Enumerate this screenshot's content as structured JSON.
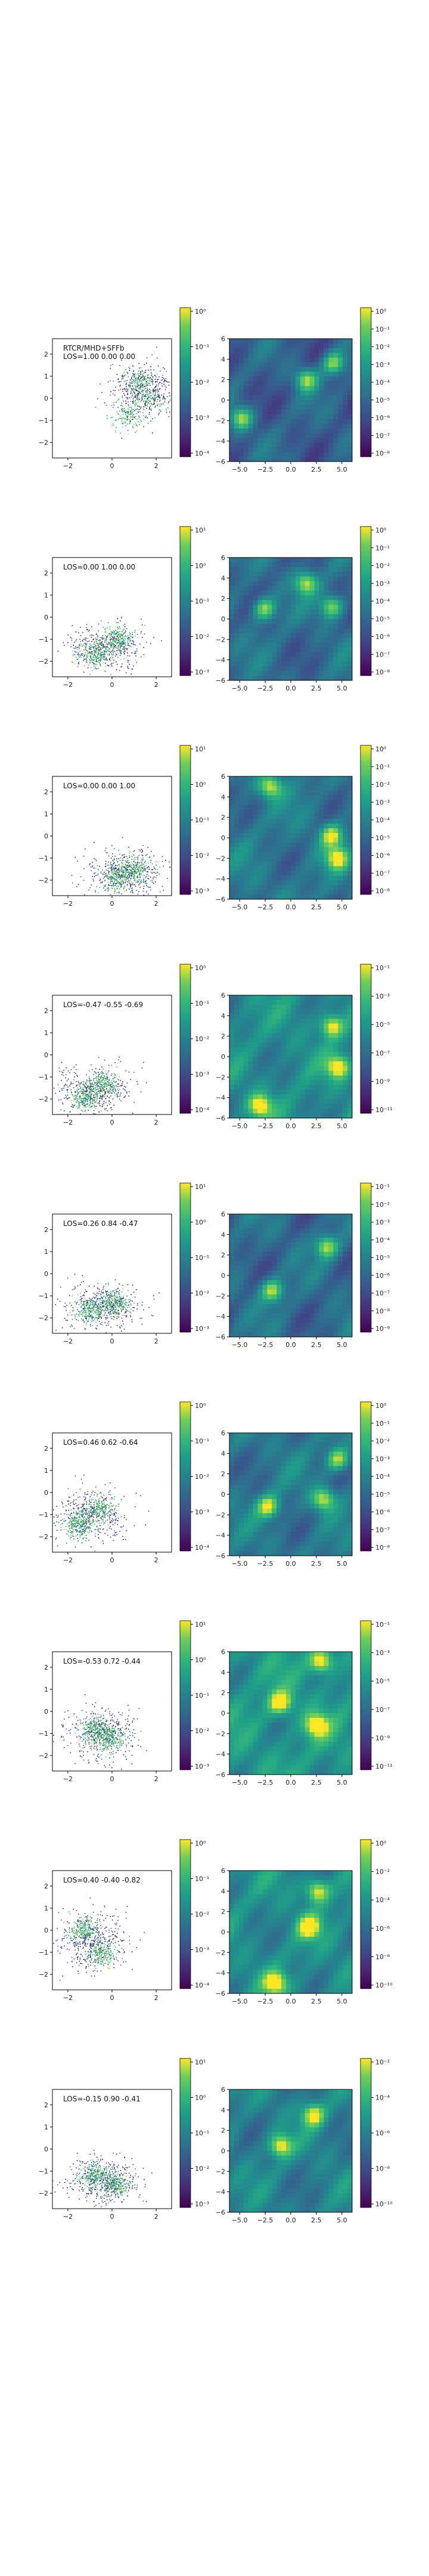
{
  "chart_data": {
    "type": "figure-grid",
    "rows": [
      {
        "left": {
          "type": "scatter",
          "annotation_lines": [
            "RTCR/MHD+SFFb",
            "LOS=1.00 0.00 0.00"
          ],
          "xticks": [
            "−2",
            "0",
            "2"
          ],
          "yticks": [
            "−2",
            "−1",
            "0",
            "1",
            "2"
          ],
          "xlim": [
            -2.7,
            2.7
          ],
          "ylim": [
            -2.7,
            2.7
          ],
          "density_centers": [
            [
              1.6,
              0.0
            ],
            [
              0.7,
              -0.8
            ],
            [
              1.2,
              0.8
            ]
          ],
          "spread": [
            1.3,
            1.1
          ]
        },
        "left_colorbar": {
          "ticks": [
            "10⁰",
            "10⁻¹",
            "10⁻²",
            "10⁻³",
            "10⁻⁴"
          ]
        },
        "right": {
          "type": "heatmap",
          "xticks": [
            "−5.0",
            "−2.5",
            "0.0",
            "2.5",
            "5.0"
          ],
          "yticks": [
            "−6",
            "−4",
            "−2",
            "0",
            "2",
            "4",
            "6"
          ],
          "xlim": [
            -6,
            6
          ],
          "ylim": [
            -6,
            6
          ],
          "bright_spots": [
            [
              4.2,
              3.6
            ],
            [
              -4.8,
              -1.8
            ],
            [
              1.5,
              2.0
            ]
          ],
          "base": 0.35
        },
        "right_colorbar": {
          "ticks": [
            "10⁰",
            "10⁻¹",
            "10⁻²",
            "10⁻³",
            "10⁻⁴",
            "10⁻⁵",
            "10⁻⁶",
            "10⁻⁷",
            "10⁻⁸"
          ]
        }
      },
      {
        "left": {
          "type": "scatter",
          "annotation_lines": [
            "LOS=0.00 1.00 0.00"
          ],
          "xticks": [
            "−2",
            "0",
            "2"
          ],
          "yticks": [
            "−2",
            "−1",
            "0",
            "1",
            "2"
          ],
          "xlim": [
            -2.7,
            2.7
          ],
          "ylim": [
            -2.7,
            2.7
          ],
          "density_centers": [
            [
              -0.8,
              -1.7
            ],
            [
              0.2,
              -1.0
            ]
          ],
          "spread": [
            1.6,
            0.9
          ]
        },
        "left_colorbar": {
          "ticks": [
            "10¹",
            "10⁰",
            "10⁻¹",
            "10⁻²",
            "10⁻³"
          ]
        },
        "right": {
          "type": "heatmap",
          "xticks": [
            "−5.0",
            "−2.5",
            "0.0",
            "2.5",
            "5.0"
          ],
          "yticks": [
            "−6",
            "−4",
            "−2",
            "0",
            "2",
            "4",
            "6"
          ],
          "xlim": [
            -6,
            6
          ],
          "ylim": [
            -6,
            6
          ],
          "bright_spots": [
            [
              -2.6,
              1.0
            ],
            [
              4.0,
              1.2
            ],
            [
              1.5,
              3.5
            ]
          ],
          "base": 0.4
        },
        "right_colorbar": {
          "ticks": [
            "10⁰",
            "10⁻¹",
            "10⁻²",
            "10⁻³",
            "10⁻⁴",
            "10⁻⁵",
            "10⁻⁶",
            "10⁻⁷",
            "10⁻⁸"
          ]
        }
      },
      {
        "left": {
          "type": "scatter",
          "annotation_lines": [
            "LOS=0.00 0.00 1.00"
          ],
          "xticks": [
            "−2",
            "0",
            "2"
          ],
          "yticks": [
            "−2",
            "−1",
            "0",
            "1",
            "2"
          ],
          "xlim": [
            -2.7,
            2.7
          ],
          "ylim": [
            -2.7,
            2.7
          ],
          "density_centers": [
            [
              0.2,
              -1.8
            ],
            [
              1.0,
              -1.5
            ]
          ],
          "spread": [
            1.5,
            1.0
          ]
        },
        "left_colorbar": {
          "ticks": [
            "10¹",
            "10⁰",
            "10⁻¹",
            "10⁻²",
            "10⁻³"
          ]
        },
        "right": {
          "type": "heatmap",
          "xticks": [
            "−5.0",
            "−2.5",
            "0.0",
            "2.5",
            "5.0"
          ],
          "yticks": [
            "−6",
            "−4",
            "−2",
            "0",
            "2",
            "4",
            "6"
          ],
          "xlim": [
            -6,
            6
          ],
          "ylim": [
            -6,
            6
          ],
          "bright_spots": [
            [
              -2.0,
              5.0
            ],
            [
              4.5,
              -2.0
            ],
            [
              4.0,
              0.2
            ]
          ],
          "base": 0.45
        },
        "right_colorbar": {
          "ticks": [
            "10⁰",
            "10⁻¹",
            "10⁻²",
            "10⁻³",
            "10⁻⁴",
            "10⁻⁵",
            "10⁻⁶",
            "10⁻⁷",
            "10⁻⁸"
          ]
        }
      },
      {
        "left": {
          "type": "scatter",
          "annotation_lines": [
            "LOS=-0.47 -0.55 -0.69"
          ],
          "xticks": [
            "−2",
            "0",
            "2"
          ],
          "yticks": [
            "−2",
            "−1",
            "0",
            "1",
            "2"
          ],
          "xlim": [
            -2.7,
            2.7
          ],
          "ylim": [
            -2.7,
            2.7
          ],
          "density_centers": [
            [
              -1.2,
              -1.9
            ],
            [
              -0.4,
              -1.3
            ]
          ],
          "spread": [
            1.5,
            1.0
          ]
        },
        "left_colorbar": {
          "ticks": [
            "10⁰",
            "10⁻¹",
            "10⁻²",
            "10⁻³",
            "10⁻⁴"
          ]
        },
        "right": {
          "type": "heatmap",
          "xticks": [
            "−5.0",
            "−2.5",
            "0.0",
            "2.5",
            "5.0"
          ],
          "yticks": [
            "−6",
            "−4",
            "−2",
            "0",
            "2",
            "4",
            "6"
          ],
          "xlim": [
            -6,
            6
          ],
          "ylim": [
            -6,
            6
          ],
          "bright_spots": [
            [
              4.0,
              3.0
            ],
            [
              4.6,
              -1.0
            ],
            [
              -3.0,
              -4.8
            ]
          ],
          "base": 0.55
        },
        "right_colorbar": {
          "ticks": [
            "10⁻¹",
            "10⁻³",
            "10⁻⁵",
            "10⁻⁷",
            "10⁻⁹",
            "10⁻¹¹"
          ]
        }
      },
      {
        "left": {
          "type": "scatter",
          "annotation_lines": [
            "LOS=0.26 0.84 -0.47"
          ],
          "xticks": [
            "−2",
            "0",
            "2"
          ],
          "yticks": [
            "−2",
            "−1",
            "0",
            "1",
            "2"
          ],
          "xlim": [
            -2.7,
            2.7
          ],
          "ylim": [
            -2.7,
            2.7
          ],
          "density_centers": [
            [
              -1.0,
              -1.6
            ],
            [
              0.1,
              -1.3
            ]
          ],
          "spread": [
            1.5,
            1.0
          ]
        },
        "left_colorbar": {
          "ticks": [
            "10¹",
            "10⁰",
            "10⁻¹",
            "10⁻²",
            "10⁻³"
          ]
        },
        "right": {
          "type": "heatmap",
          "xticks": [
            "−5.0",
            "−2.5",
            "0.0",
            "2.5",
            "5.0"
          ],
          "yticks": [
            "−6",
            "−4",
            "−2",
            "0",
            "2",
            "4",
            "6"
          ],
          "xlim": [
            -6,
            6
          ],
          "ylim": [
            -6,
            6
          ],
          "bright_spots": [
            [
              3.5,
              2.8
            ],
            [
              -1.8,
              -1.5
            ]
          ],
          "base": 0.4
        },
        "right_colorbar": {
          "ticks": [
            "10⁻¹",
            "10⁻²",
            "10⁻³",
            "10⁻⁴",
            "10⁻⁵",
            "10⁻⁶",
            "10⁻⁷",
            "10⁻⁸",
            "10⁻⁹"
          ]
        }
      },
      {
        "left": {
          "type": "scatter",
          "annotation_lines": [
            "LOS=0.46 0.62 -0.64"
          ],
          "xticks": [
            "−2",
            "0",
            "2"
          ],
          "yticks": [
            "−2",
            "−1",
            "0",
            "1",
            "2"
          ],
          "xlim": [
            -2.7,
            2.7
          ],
          "ylim": [
            -2.7,
            2.7
          ],
          "density_centers": [
            [
              -1.5,
              -1.4
            ],
            [
              -0.6,
              -0.7
            ]
          ],
          "spread": [
            1.5,
            1.1
          ]
        },
        "left_colorbar": {
          "ticks": [
            "10⁰",
            "10⁻¹",
            "10⁻²",
            "10⁻³",
            "10⁻⁴"
          ]
        },
        "right": {
          "type": "heatmap",
          "xticks": [
            "−5.0",
            "−2.5",
            "0.0",
            "2.5",
            "5.0"
          ],
          "yticks": [
            "−6",
            "−4",
            "−2",
            "0",
            "2",
            "4",
            "6"
          ],
          "xlim": [
            -6,
            6
          ],
          "ylim": [
            -6,
            6
          ],
          "bright_spots": [
            [
              4.6,
              3.4
            ],
            [
              -2.2,
              -1.2
            ],
            [
              3.2,
              -0.5
            ]
          ],
          "base": 0.45
        },
        "right_colorbar": {
          "ticks": [
            "10⁰",
            "10⁻¹",
            "10⁻²",
            "10⁻³",
            "10⁻⁴",
            "10⁻⁵",
            "10⁻⁶",
            "10⁻⁷",
            "10⁻⁸"
          ]
        }
      },
      {
        "left": {
          "type": "scatter",
          "annotation_lines": [
            "LOS=-0.53 0.72 -0.44"
          ],
          "xticks": [
            "−2",
            "0",
            "2"
          ],
          "yticks": [
            "−2",
            "−1",
            "0",
            "1",
            "2"
          ],
          "xlim": [
            -2.7,
            2.7
          ],
          "ylim": [
            -2.7,
            2.7
          ],
          "density_centers": [
            [
              -0.8,
              -0.8
            ],
            [
              -0.2,
              -1.2
            ]
          ],
          "spread": [
            1.4,
            1.1
          ]
        },
        "left_colorbar": {
          "ticks": [
            "10¹",
            "10⁰",
            "10⁻¹",
            "10⁻²",
            "10⁻³"
          ]
        },
        "right": {
          "type": "heatmap",
          "xticks": [
            "−5.0",
            "−2.5",
            "0.0",
            "2.5",
            "5.0"
          ],
          "yticks": [
            "−6",
            "−4",
            "−2",
            "0",
            "2",
            "4",
            "6"
          ],
          "xlim": [
            -6,
            6
          ],
          "ylim": [
            -6,
            6
          ],
          "bright_spots": [
            [
              3.0,
              5.0
            ],
            [
              -1.0,
              1.0
            ],
            [
              2.5,
              -1.2
            ]
          ],
          "base": 0.6
        },
        "right_colorbar": {
          "ticks": [
            "10⁻¹",
            "10⁻³",
            "10⁻⁵",
            "10⁻⁷",
            "10⁻⁹",
            "10⁻¹¹"
          ]
        }
      },
      {
        "left": {
          "type": "scatter",
          "annotation_lines": [
            "LOS=0.40 -0.40 -0.82"
          ],
          "xticks": [
            "−2",
            "0",
            "2"
          ],
          "yticks": [
            "−2",
            "−1",
            "0",
            "1",
            "2"
          ],
          "xlim": [
            -2.7,
            2.7
          ],
          "ylim": [
            -2.7,
            2.7
          ],
          "density_centers": [
            [
              -1.3,
              0.0
            ],
            [
              -0.5,
              -1.0
            ]
          ],
          "spread": [
            1.5,
            1.2
          ]
        },
        "left_colorbar": {
          "ticks": [
            "10⁰",
            "10⁻¹",
            "10⁻²",
            "10⁻³",
            "10⁻⁴"
          ]
        },
        "right": {
          "type": "heatmap",
          "xticks": [
            "−5.0",
            "−2.5",
            "0.0",
            "2.5",
            "5.0"
          ],
          "yticks": [
            "−6",
            "−4",
            "−2",
            "0",
            "2",
            "4",
            "6"
          ],
          "xlim": [
            -6,
            6
          ],
          "ylim": [
            -6,
            6
          ],
          "bright_spots": [
            [
              2.6,
              4.0
            ],
            [
              1.8,
              0.5
            ],
            [
              -1.5,
              -5.0
            ]
          ],
          "base": 0.55
        },
        "right_colorbar": {
          "ticks": [
            "10⁰",
            "10⁻²",
            "10⁻⁴",
            "10⁻⁶",
            "10⁻⁸",
            "10⁻¹⁰"
          ]
        }
      },
      {
        "left": {
          "type": "scatter",
          "annotation_lines": [
            "LOS=-0.15 0.90 -0.41"
          ],
          "xticks": [
            "−2",
            "0",
            "2"
          ],
          "yticks": [
            "−2",
            "−1",
            "0",
            "1",
            "2"
          ],
          "xlim": [
            -2.7,
            2.7
          ],
          "ylim": [
            -2.7,
            2.7
          ],
          "density_centers": [
            [
              -0.8,
              -1.2
            ],
            [
              0.1,
              -1.6
            ]
          ],
          "spread": [
            1.5,
            1.0
          ]
        },
        "left_colorbar": {
          "ticks": [
            "10¹",
            "10⁰",
            "10⁻¹",
            "10⁻²",
            "10⁻³"
          ]
        },
        "right": {
          "type": "heatmap",
          "xticks": [
            "−5.0",
            "−2.5",
            "0.0",
            "2.5",
            "5.0"
          ],
          "yticks": [
            "−6",
            "−4",
            "−2",
            "0",
            "2",
            "4",
            "6"
          ],
          "xlim": [
            -6,
            6
          ],
          "ylim": [
            -6,
            6
          ],
          "bright_spots": [
            [
              2.2,
              3.5
            ],
            [
              -1.0,
              0.5
            ]
          ],
          "base": 0.5
        },
        "right_colorbar": {
          "ticks": [
            "10⁻²",
            "10⁻⁴",
            "10⁻⁶",
            "10⁻⁸",
            "10⁻¹⁰"
          ]
        }
      }
    ]
  }
}
